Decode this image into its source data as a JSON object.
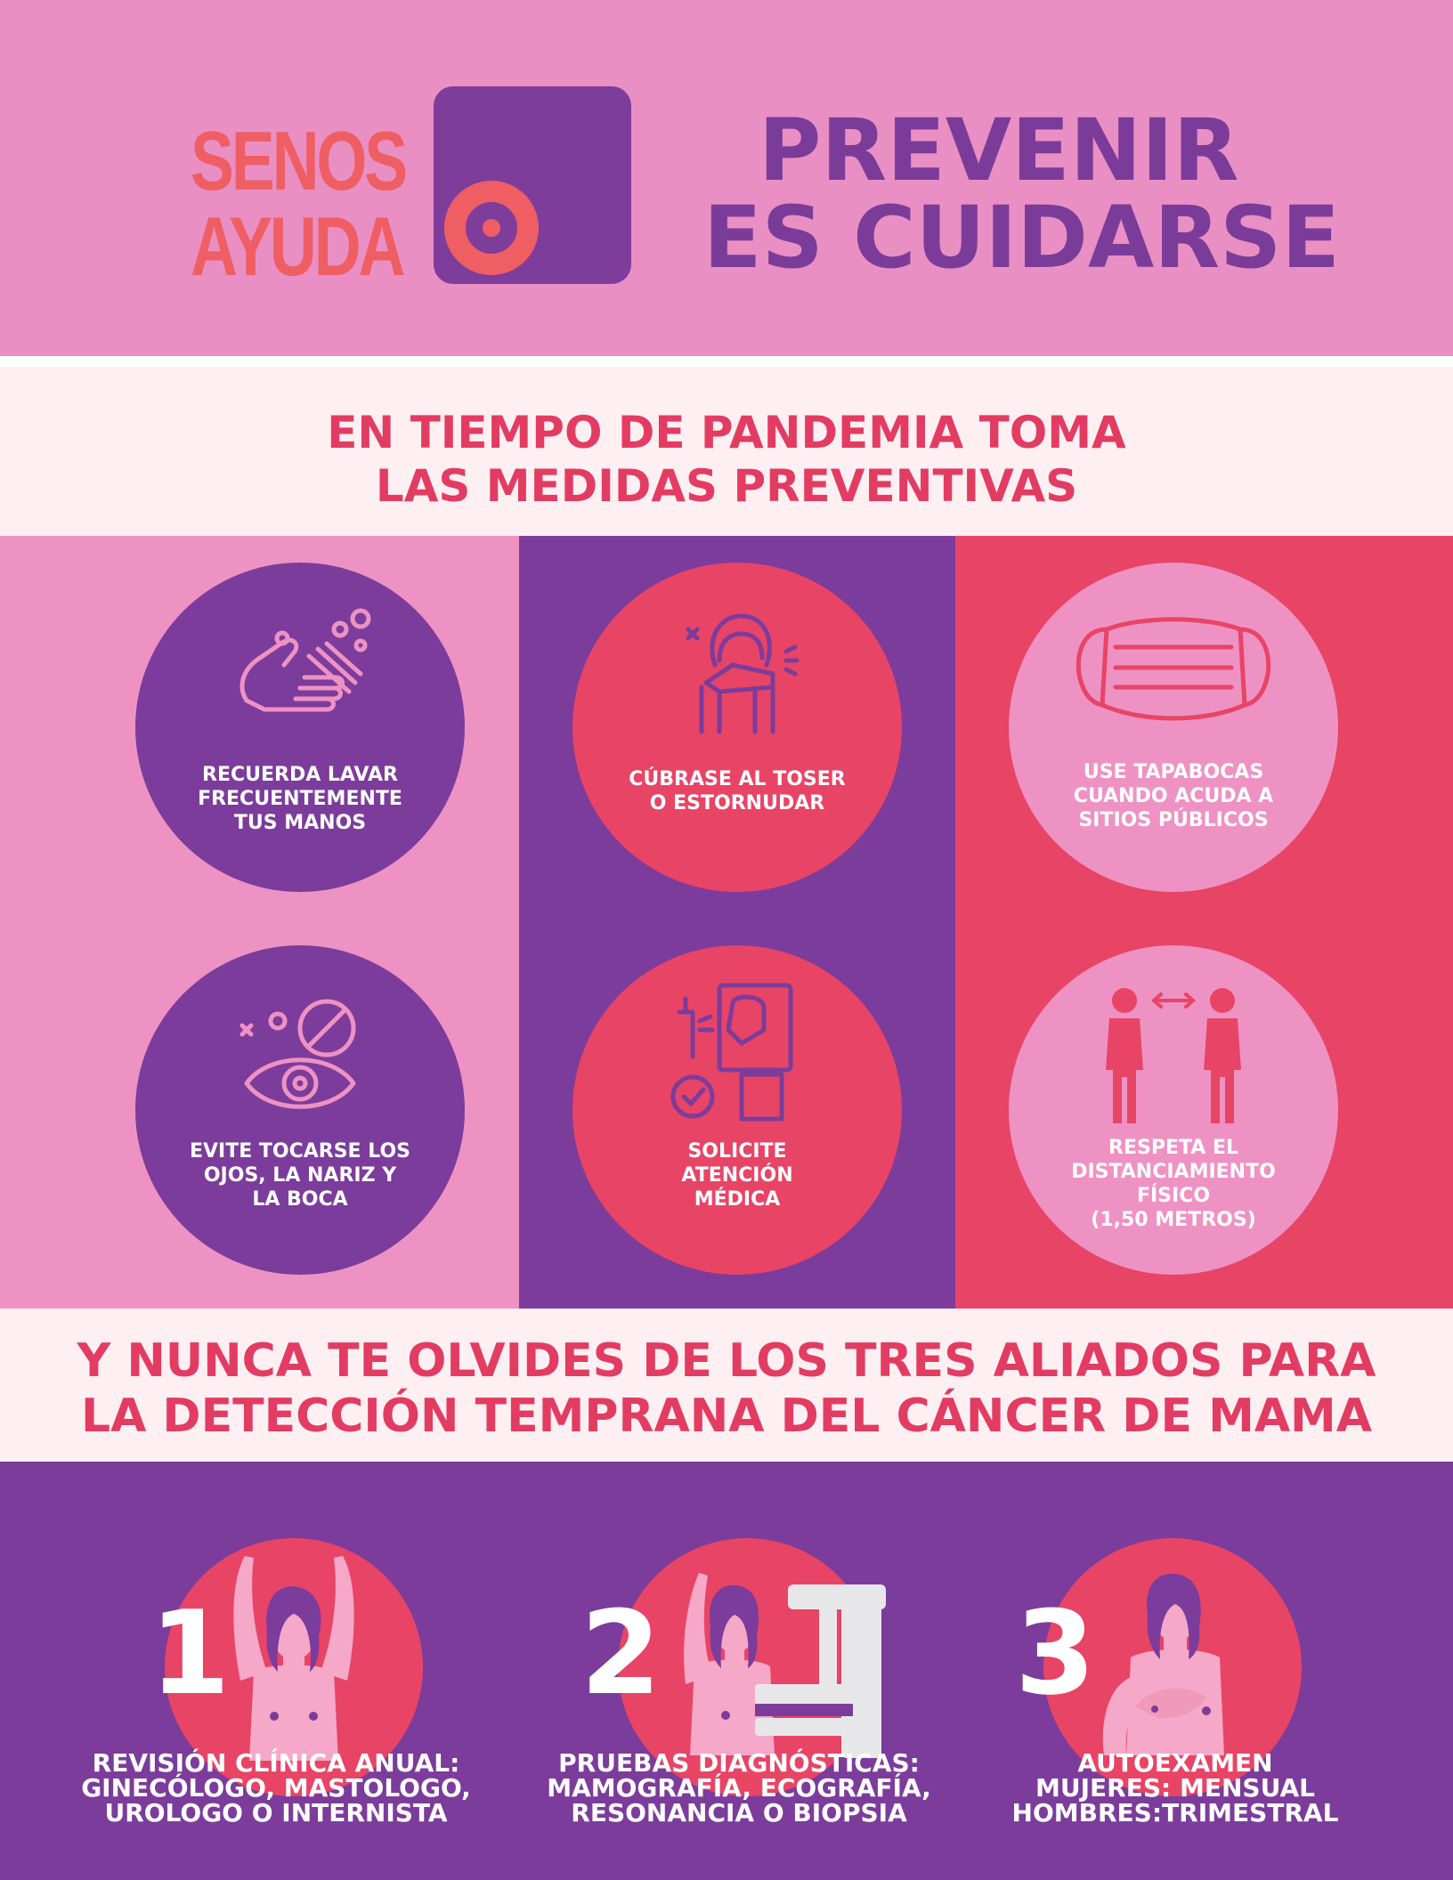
{
  "logo": {
    "line1": "SENOS",
    "line2": "AYUDA"
  },
  "headline": {
    "line1": "PREVENIR",
    "line2": "ES CUIDARSE"
  },
  "band1": {
    "line1": "EN TIEMPO DE PANDEMIA TOMA",
    "line2": "LAS MEDIDAS PREVENTIVAS"
  },
  "measures": [
    {
      "icon": "hand-washing-icon",
      "lines": [
        "RECUERDA LAVAR",
        "FRECUENTEMENTE",
        "TUS MANOS"
      ]
    },
    {
      "icon": "cough-elbow-icon",
      "lines": [
        "CÚBRASE AL TOSER",
        "O ESTORNUDAR"
      ]
    },
    {
      "icon": "face-mask-icon",
      "lines": [
        "USE TAPABOCAS",
        "CUANDO ACUDA A",
        "SITIOS PÚBLICOS"
      ]
    },
    {
      "icon": "no-touch-eye-icon",
      "lines": [
        "EVITE TOCARSE LOS",
        "OJOS, LA NARIZ Y",
        "LA BOCA"
      ]
    },
    {
      "icon": "medical-attention-icon",
      "lines": [
        "SOLICITE",
        "ATENCIÓN",
        "MÉDICA"
      ]
    },
    {
      "icon": "social-distance-icon",
      "lines": [
        "RESPETA  EL",
        "DISTANCIAMIENTO",
        "FÍSICO",
        "(1,50  METROS)"
      ]
    }
  ],
  "band2": {
    "line1": "Y NUNCA TE OLVIDES DE LOS TRES ALIADOS PARA",
    "line2": "LA DETECCIÓN TEMPRANA DEL CÁNCER DE MAMA"
  },
  "allies": [
    {
      "number": "1",
      "icon": "clinical-review-icon",
      "lines": [
        "REVISIÓN CLÍNICA ANUAL:",
        "GINECÓLOGO, MASTOLOGO,",
        "UROLOGO O INTERNISTA"
      ]
    },
    {
      "number": "2",
      "icon": "mammography-icon",
      "lines": [
        "PRUEBAS DIAGNÓSTICAS:",
        "MAMOGRAFÍA, ECOGRAFÍA,",
        "RESONANCIA O BIOPSIA"
      ]
    },
    {
      "number": "3",
      "icon": "self-exam-icon",
      "lines": [
        "AUTOEXAMEN",
        "MUJERES: MENSUAL",
        "HOMBRES:TRIMESTRAL"
      ]
    }
  ],
  "colors": {
    "pink": "#ee92c4",
    "purple": "#7c3c9b",
    "red": "#e84466",
    "coral": "#ef5e63",
    "light": "#fdeff2"
  }
}
